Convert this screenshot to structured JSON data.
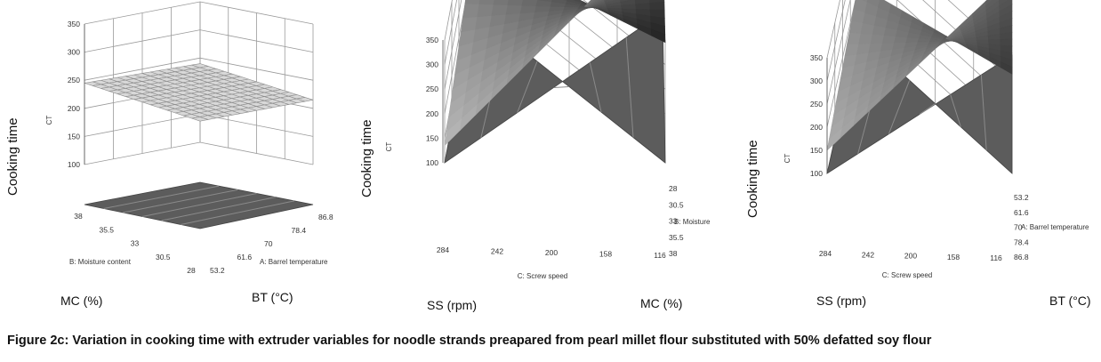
{
  "caption": "Figure 2c: Variation in cooking time with extruder variables for noodle strands preapared from pearl millet flour substituted with 50% defatted soy flour",
  "colors": {
    "floor": "#5c5c5c",
    "grid": "#9a9a9a",
    "surface_dark": "#1e1e1e",
    "surface_light": "#bdbdbd"
  },
  "chart_data": [
    {
      "type": "surface3d",
      "side_label": "Cooking time",
      "zlabel": "CT",
      "zticks": [
        "100",
        "150",
        "200",
        "250",
        "300",
        "350"
      ],
      "zlim": [
        100,
        350
      ],
      "left_axis": {
        "label": "B: Moisture content",
        "ticks": [
          "38",
          "35.5",
          "33",
          "30.5",
          "28"
        ]
      },
      "right_axis": {
        "label": "A: Barrel temperature",
        "ticks": [
          "53.2",
          "61.6",
          "70",
          "78.4",
          "86.8"
        ]
      },
      "bottom_labels": [
        "MC (%)",
        "BT (°C)"
      ],
      "corners": {
        "far_low_left": 245,
        "near": 220,
        "right": 215,
        "back": 240
      }
    },
    {
      "type": "surface3d",
      "side_label": "Cooking time",
      "zlabel": "CT",
      "zticks": [
        "100",
        "150",
        "200",
        "250",
        "300",
        "350"
      ],
      "zlim": [
        100,
        350
      ],
      "left_axis": {
        "label": "C: Screw speed",
        "ticks": [
          "284",
          "242",
          "200",
          "158",
          "116"
        ]
      },
      "right_axis": {
        "label": "B: Moisture",
        "ticks": [
          "28",
          "30.5",
          "33",
          "35.5",
          "38"
        ]
      },
      "bottom_labels": [
        "SS (rpm)",
        "MC (%)"
      ],
      "corners": {
        "left_front": 135,
        "left_back": 230,
        "right_front": 270,
        "right_back": 345
      }
    },
    {
      "type": "surface3d",
      "side_label": "Cooking time",
      "zlabel": "CT",
      "zticks": [
        "100",
        "150",
        "200",
        "250",
        "300",
        "350"
      ],
      "zlim": [
        100,
        350
      ],
      "left_axis": {
        "label": "C: Screw speed",
        "ticks": [
          "284",
          "242",
          "200",
          "158",
          "116"
        ]
      },
      "right_axis": {
        "label": "A: Barrel temperature",
        "ticks": [
          "53.2",
          "61.6",
          "70",
          "78.4",
          "86.8"
        ]
      },
      "bottom_labels": [
        "SS (rpm)",
        "BT (°C)"
      ],
      "corners": {
        "left_front": 150,
        "left_back": 205,
        "right_front": 270,
        "right_back": 315
      }
    }
  ]
}
